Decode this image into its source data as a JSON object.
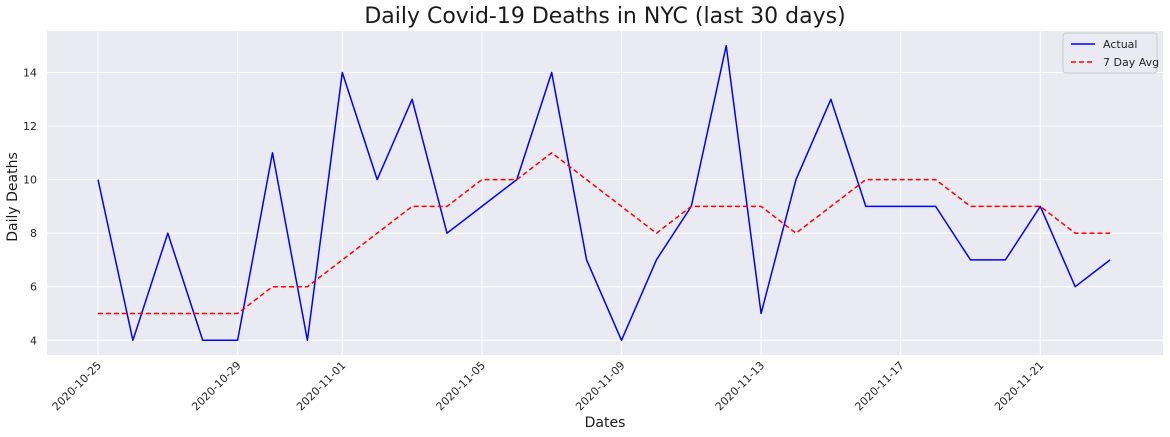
{
  "chart_data": {
    "type": "line",
    "title": "Daily Covid-19 Deaths in NYC (last 30 days)",
    "xlabel": "Dates",
    "ylabel": "Daily Deaths",
    "x": [
      "2020-10-25",
      "2020-10-26",
      "2020-10-27",
      "2020-10-28",
      "2020-10-29",
      "2020-10-30",
      "2020-10-31",
      "2020-11-01",
      "2020-11-02",
      "2020-11-03",
      "2020-11-04",
      "2020-11-05",
      "2020-11-06",
      "2020-11-07",
      "2020-11-08",
      "2020-11-09",
      "2020-11-10",
      "2020-11-11",
      "2020-11-12",
      "2020-11-13",
      "2020-11-14",
      "2020-11-15",
      "2020-11-16",
      "2020-11-17",
      "2020-11-18",
      "2020-11-19",
      "2020-11-20",
      "2020-11-21",
      "2020-11-22",
      "2020-11-23"
    ],
    "xticks": [
      "2020-10-25",
      "2020-10-29",
      "2020-11-01",
      "2020-11-05",
      "2020-11-09",
      "2020-11-13",
      "2020-11-17",
      "2020-11-21"
    ],
    "yticks": [
      4,
      6,
      8,
      10,
      12,
      14
    ],
    "ylim": [
      3.45,
      15.55
    ],
    "grid": true,
    "legend_position": "top-right",
    "series": [
      {
        "name": "Actual",
        "color": "#0000ff",
        "style": "solid",
        "values": [
          10,
          4,
          8,
          4,
          4,
          11,
          4,
          14,
          10,
          13,
          8,
          9,
          10,
          14,
          7,
          4,
          7,
          9,
          15,
          5,
          10,
          13,
          9,
          9,
          9,
          7,
          7,
          9,
          6,
          7
        ]
      },
      {
        "name": "7 Day Avg",
        "color": "#ff0000",
        "style": "dashed",
        "values": [
          5,
          5,
          5,
          5,
          5,
          6,
          6,
          7,
          8,
          9,
          9,
          10,
          10,
          11,
          10,
          9,
          8,
          9,
          9,
          9,
          8,
          9,
          10,
          10,
          10,
          9,
          9,
          9,
          8,
          8
        ]
      }
    ]
  }
}
